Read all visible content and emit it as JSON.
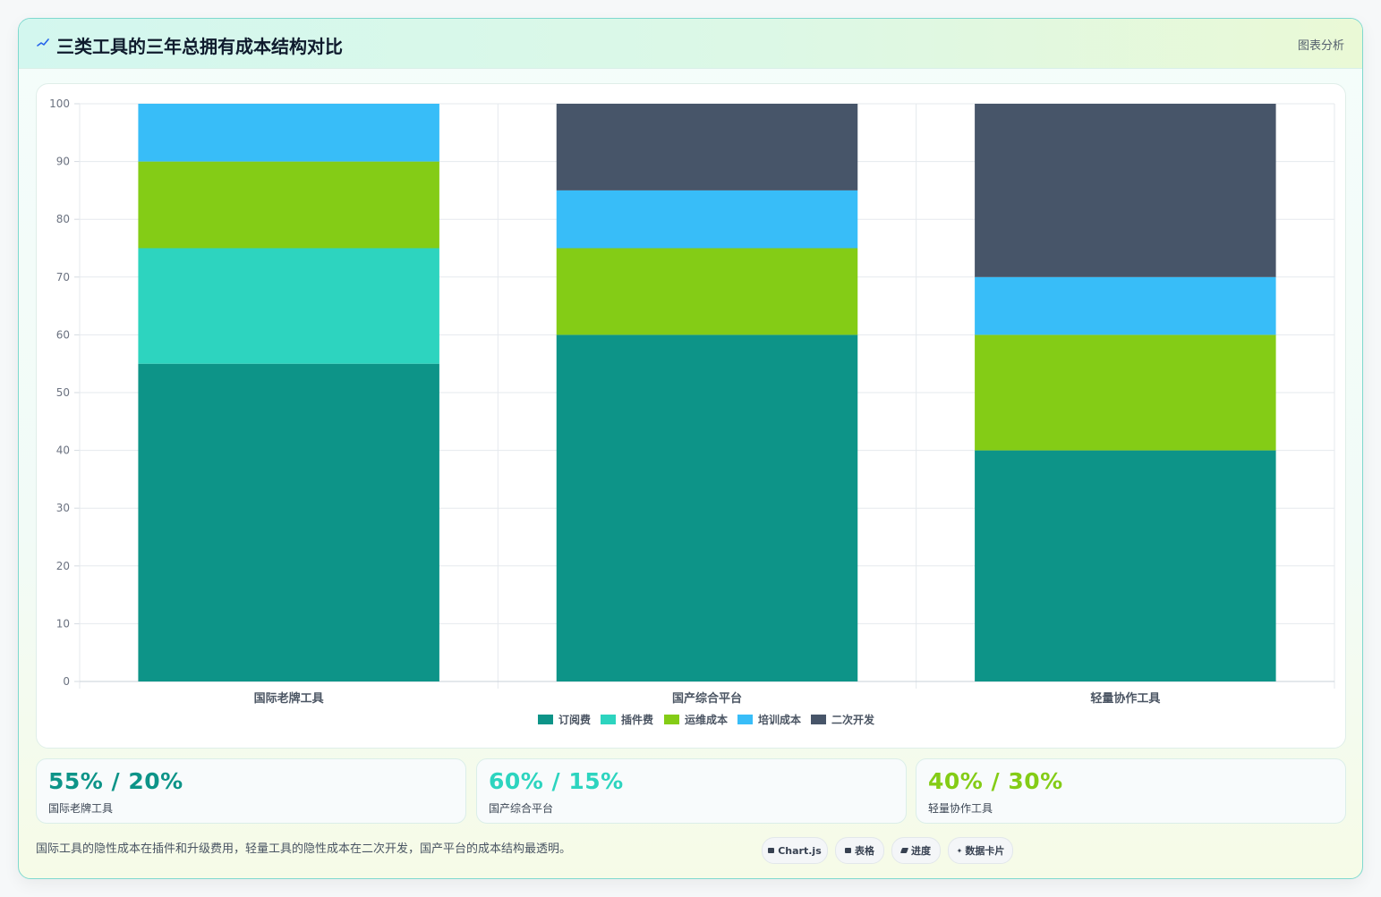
{
  "header": {
    "title": "三类工具的三年总拥有成本结构对比",
    "tag": "图表分析",
    "icon": "sparkline-icon"
  },
  "chart_data": {
    "type": "bar",
    "stacked": true,
    "categories": [
      "国际老牌工具",
      "国产综合平台",
      "轻量协作工具"
    ],
    "series": [
      {
        "name": "订阅费",
        "color": "#0d9488",
        "values": [
          55,
          60,
          40
        ]
      },
      {
        "name": "插件费",
        "color": "#2dd4bf",
        "values": [
          20,
          0,
          0
        ]
      },
      {
        "name": "运维成本",
        "color": "#84cc16",
        "values": [
          15,
          15,
          20
        ]
      },
      {
        "name": "培训成本",
        "color": "#38bdf8",
        "values": [
          10,
          10,
          10
        ]
      },
      {
        "name": "二次开发",
        "color": "#475569",
        "values": [
          0,
          15,
          30
        ]
      }
    ],
    "ylim": [
      0,
      100
    ],
    "yticks": [
      "0",
      "10",
      "20",
      "30",
      "40",
      "50",
      "60",
      "70",
      "80",
      "90",
      "100"
    ],
    "grid": true,
    "legend_position": "bottom"
  },
  "stats": [
    {
      "value": "55% / 20%",
      "label": "国际老牌工具",
      "color": "#0d9488"
    },
    {
      "value": "60% / 15%",
      "label": "国产综合平台",
      "color": "#2dd4bf"
    },
    {
      "value": "40% / 30%",
      "label": "轻量协作工具",
      "color": "#84cc16"
    }
  ],
  "footnote": "国际工具的隐性成本在插件和升级费用，轻量工具的隐性成本在二次开发，国产平台的成本结构最透明。",
  "chips": [
    {
      "label": "Chart.js",
      "icon": "chart-icon"
    },
    {
      "label": "表格",
      "icon": "table-icon"
    },
    {
      "label": "进度",
      "icon": "progress-icon"
    },
    {
      "label": "数据卡片",
      "icon": "sparkle-icon"
    }
  ]
}
